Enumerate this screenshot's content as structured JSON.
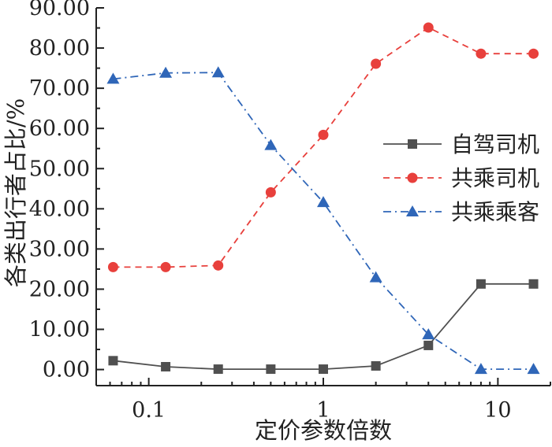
{
  "chart_data": {
    "type": "line",
    "xscale": "log",
    "xlabel": "定价参数倍数",
    "ylabel": "各类出行者占比/%",
    "xlim": [
      0.05,
      20
    ],
    "ylim": [
      -4,
      90
    ],
    "x_ticks": [
      0.1,
      1,
      10
    ],
    "x_tick_labels": [
      "0.1",
      "1",
      "10"
    ],
    "y_ticks": [
      0,
      10,
      20,
      30,
      40,
      50,
      60,
      70,
      80,
      90
    ],
    "y_tick_labels": [
      "0.00",
      "10.00",
      "20.00",
      "30.00",
      "40.00",
      "50.00",
      "60.00",
      "70.00",
      "80.00",
      "90.00"
    ],
    "grid": false,
    "legend_position": "right",
    "x": [
      0.0625,
      0.125,
      0.25,
      0.5,
      1,
      2,
      4,
      8,
      16
    ],
    "series": [
      {
        "name": "自驾司机",
        "color": "#505050",
        "marker": "square",
        "line_style": "solid",
        "values": [
          2.2,
          0.7,
          0.1,
          0.1,
          0.1,
          0.9,
          6.0,
          21.3,
          21.3
        ]
      },
      {
        "name": "共乘司机",
        "color": "#e8403c",
        "marker": "circle",
        "line_style": "dashed",
        "values": [
          25.5,
          25.5,
          25.9,
          44.1,
          58.4,
          76.1,
          85.1,
          78.6,
          78.6
        ]
      },
      {
        "name": "共乘乘客",
        "color": "#2f66b8",
        "marker": "triangle",
        "line_style": "dashdot",
        "values": [
          72.3,
          73.8,
          73.9,
          55.8,
          41.6,
          22.9,
          8.7,
          0.1,
          0.1
        ]
      }
    ]
  }
}
